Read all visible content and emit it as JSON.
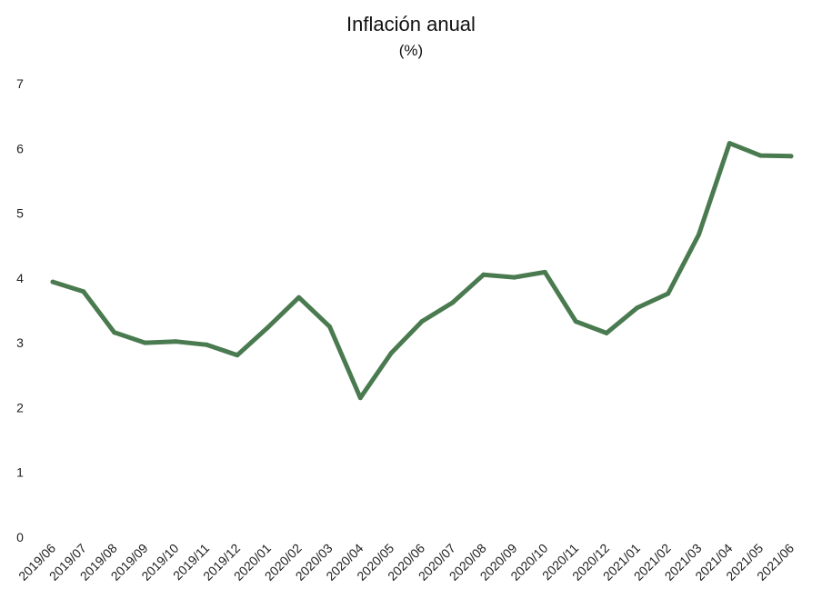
{
  "chart_data": {
    "type": "line",
    "title": "Inflación anual",
    "subtitle": "(%)",
    "xlabel": "",
    "ylabel": "",
    "categories": [
      "2019/06",
      "2019/07",
      "2019/08",
      "2019/09",
      "2019/10",
      "2019/11",
      "2019/12",
      "2020/01",
      "2020/02",
      "2020/03",
      "2020/04",
      "2020/05",
      "2020/06",
      "2020/07",
      "2020/08",
      "2020/09",
      "2020/10",
      "2020/11",
      "2020/12",
      "2021/01",
      "2021/02",
      "2021/03",
      "2021/04",
      "2021/05",
      "2021/06"
    ],
    "series": [
      {
        "name": "",
        "color": "#4a7a4f",
        "values": [
          3.94,
          3.79,
          3.16,
          3.0,
          3.02,
          2.97,
          2.81,
          3.24,
          3.7,
          3.25,
          2.15,
          2.84,
          3.33,
          3.62,
          4.05,
          4.01,
          4.09,
          3.33,
          3.15,
          3.54,
          3.76,
          4.67,
          6.08,
          5.89,
          5.88
        ]
      }
    ],
    "ylim": [
      0,
      7
    ],
    "yticks": [
      0,
      1,
      2,
      3,
      4,
      5,
      6,
      7
    ],
    "grid": false,
    "legend": "none"
  }
}
